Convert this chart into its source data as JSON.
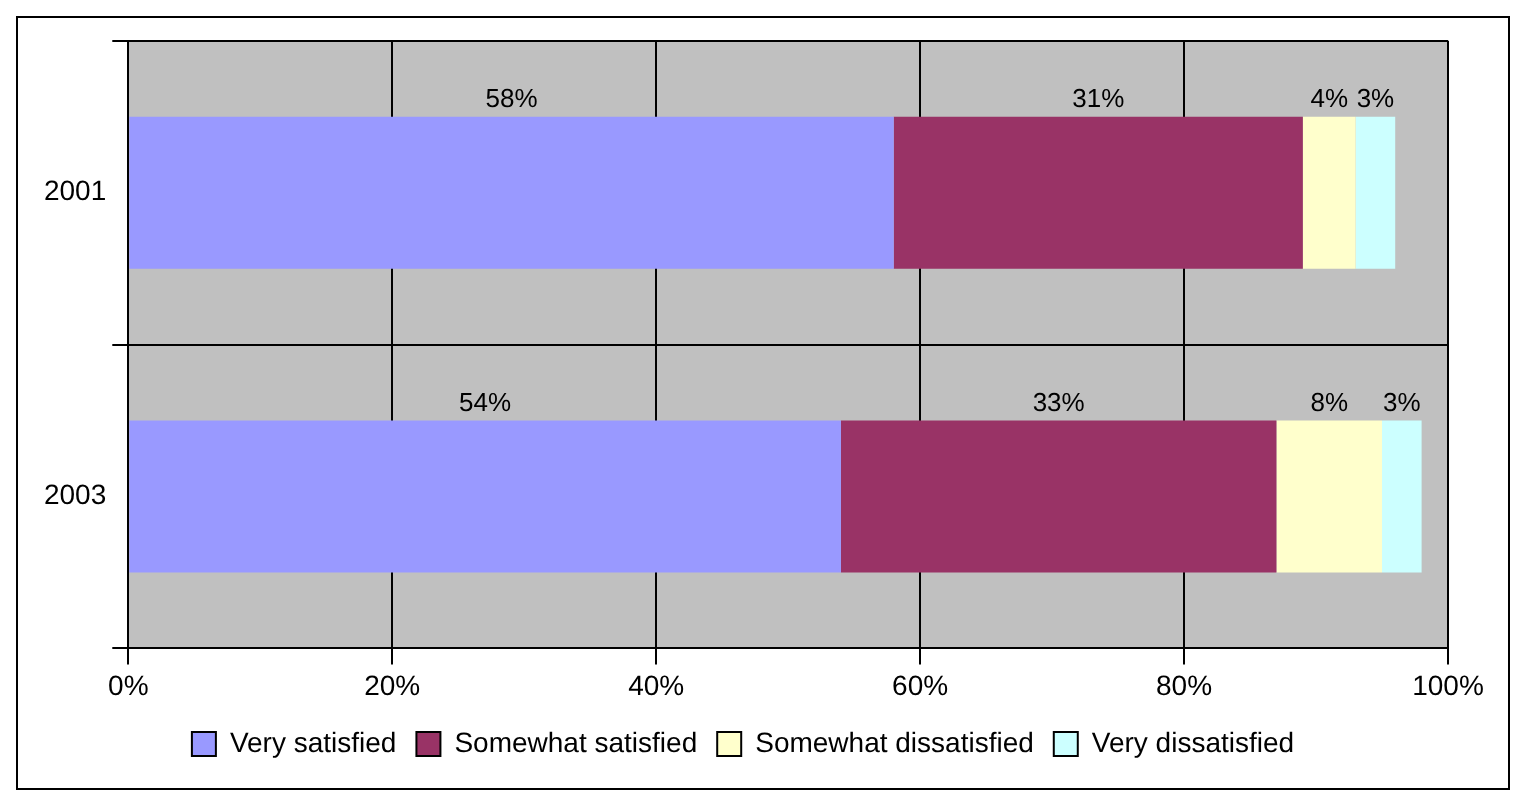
{
  "chart_data": {
    "type": "bar",
    "orientation": "horizontal",
    "stacked": true,
    "categories": [
      "2001",
      "2003"
    ],
    "series": [
      {
        "name": "Very satisfied",
        "color": "#9999ff",
        "values": [
          58,
          54
        ],
        "value_labels": [
          "58%",
          "54%"
        ]
      },
      {
        "name": "Somewhat satisfied",
        "color": "#993366",
        "values": [
          31,
          33
        ],
        "value_labels": [
          "31%",
          "33%"
        ]
      },
      {
        "name": "Somewhat dissatisfied",
        "color": "#ffffcc",
        "values": [
          4,
          8
        ],
        "value_labels": [
          "4%",
          "8%"
        ]
      },
      {
        "name": "Very dissatisfied",
        "color": "#ccffff",
        "values": [
          3,
          3
        ],
        "value_labels": [
          "3%",
          "3%"
        ]
      }
    ],
    "xlim": [
      0,
      100
    ],
    "xticks": [
      {
        "value": 0,
        "label": "0%"
      },
      {
        "value": 20,
        "label": "20%"
      },
      {
        "value": 40,
        "label": "40%"
      },
      {
        "value": 60,
        "label": "60%"
      },
      {
        "value": 80,
        "label": "80%"
      },
      {
        "value": 100,
        "label": "100%"
      }
    ],
    "grid": true,
    "legend": "bottom"
  }
}
